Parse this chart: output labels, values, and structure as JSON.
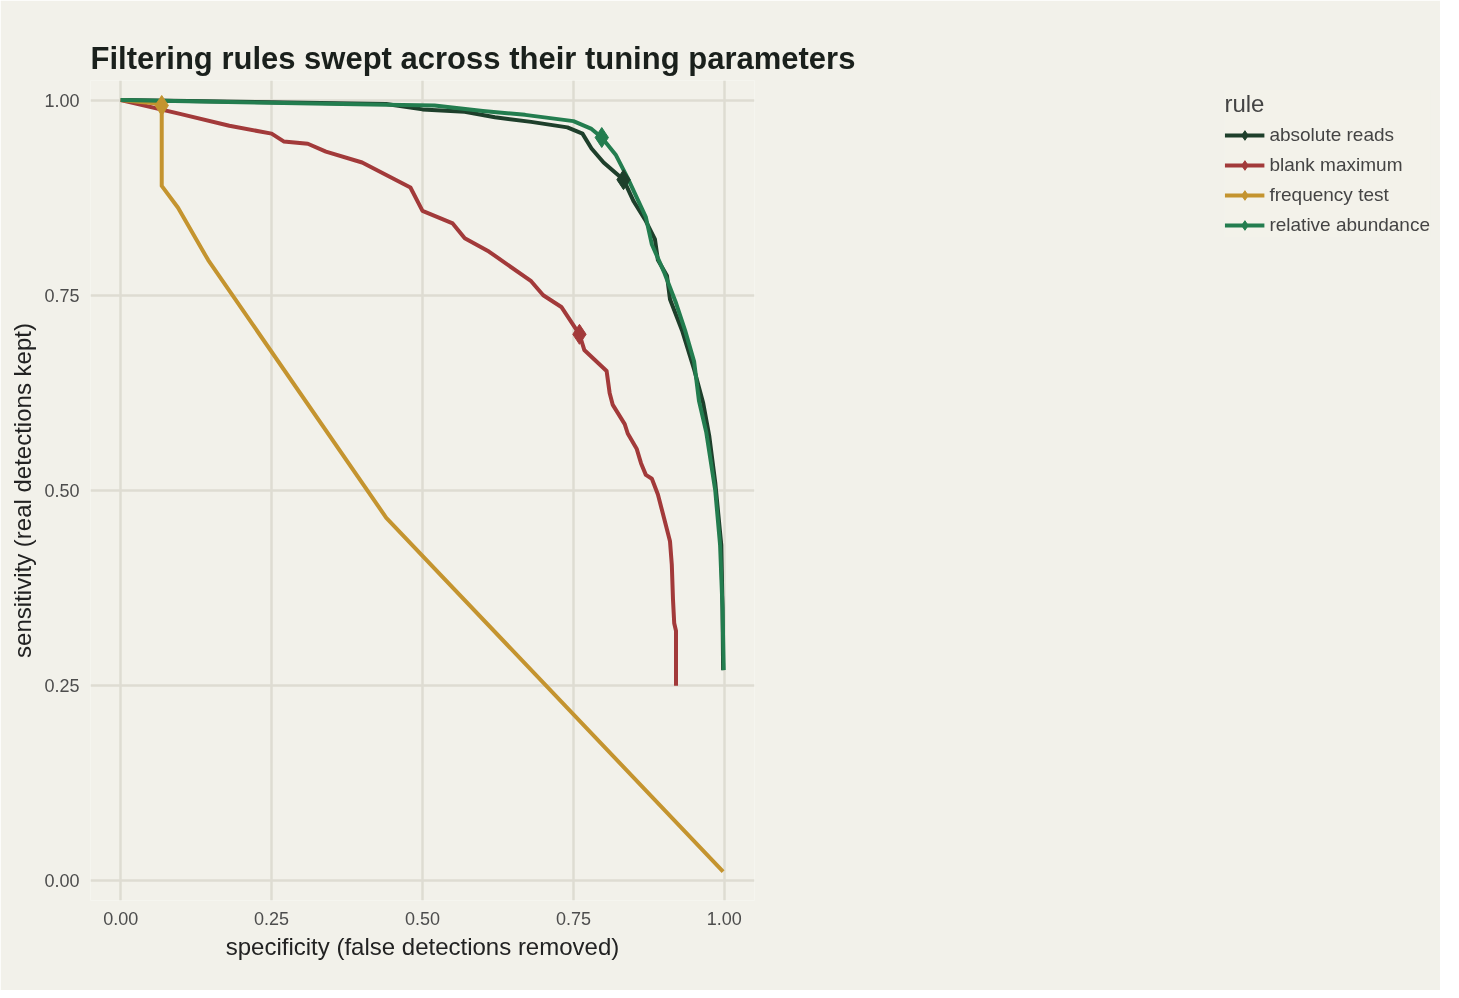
{
  "chart_data": {
    "type": "line",
    "title": "Filtering rules swept across their tuning parameters",
    "xlabel": "specificity (false detections removed)",
    "ylabel": "sensitivity (real detections kept)",
    "legend_title": "rule",
    "legend": "right",
    "grid": true,
    "line_style": "solid",
    "marker": "none",
    "xlim": [
      -0.05,
      1.05
    ],
    "ylim": [
      -0.025,
      1.025
    ],
    "xticks": [
      {
        "value": 0,
        "label": "0.00"
      },
      {
        "value": 0.25,
        "label": "0.25"
      },
      {
        "value": 0.5,
        "label": "0.50"
      },
      {
        "value": 0.75,
        "label": "0.75"
      },
      {
        "value": 1,
        "label": "1.00"
      }
    ],
    "yticks": [
      {
        "value": 0,
        "label": "0.00"
      },
      {
        "value": 0.25,
        "label": "0.25"
      },
      {
        "value": 0.5,
        "label": "0.50"
      },
      {
        "value": 0.75,
        "label": "0.75"
      },
      {
        "value": 1,
        "label": "1.00"
      }
    ],
    "series": [
      {
        "name": "absolute reads",
        "color": "#1e3f2b",
        "x": [
          0,
          0.25,
          0.44,
          0.5,
          0.57,
          0.62,
          0.68,
          0.74,
          0.765,
          0.78,
          0.8,
          0.833,
          0.85,
          0.87,
          0.885,
          0.89,
          0.905,
          0.91,
          0.93,
          0.95,
          0.965,
          0.975,
          0.985,
          0.99,
          0.995,
          0.997,
          0.998
        ],
        "values": [
          1,
          0.997,
          0.995,
          0.988,
          0.985,
          0.978,
          0.972,
          0.965,
          0.957,
          0.938,
          0.92,
          0.898,
          0.87,
          0.845,
          0.822,
          0.795,
          0.775,
          0.745,
          0.705,
          0.655,
          0.612,
          0.57,
          0.51,
          0.47,
          0.43,
          0.35,
          0.27
        ]
      },
      {
        "name": "blank maximum",
        "color": "#a23a3a",
        "x": [
          0,
          0.1,
          0.18,
          0.25,
          0.27,
          0.31,
          0.34,
          0.4,
          0.48,
          0.5,
          0.55,
          0.57,
          0.61,
          0.68,
          0.7,
          0.73,
          0.76,
          0.768,
          0.805,
          0.81,
          0.815,
          0.835,
          0.84,
          0.855,
          0.862,
          0.87,
          0.88,
          0.89,
          0.9,
          0.91,
          0.913,
          0.915,
          0.917,
          0.92,
          0.92
        ],
        "values": [
          1,
          0.982,
          0.967,
          0.957,
          0.947,
          0.944,
          0.934,
          0.92,
          0.888,
          0.858,
          0.842,
          0.823,
          0.806,
          0.768,
          0.75,
          0.735,
          0.7,
          0.68,
          0.653,
          0.625,
          0.61,
          0.585,
          0.573,
          0.553,
          0.535,
          0.52,
          0.515,
          0.495,
          0.465,
          0.435,
          0.405,
          0.36,
          0.33,
          0.32,
          0.25
        ]
      },
      {
        "name": "frequency test",
        "color": "#c4942f",
        "x": [
          0,
          0.068,
          0.068,
          0.095,
          0.145,
          0.44,
          0.998
        ],
        "values": [
          1,
          0.995,
          0.89,
          0.862,
          0.795,
          0.465,
          0.012
        ]
      },
      {
        "name": "relative abundance",
        "color": "#237d4f",
        "x": [
          0,
          0.2,
          0.44,
          0.52,
          0.6,
          0.67,
          0.75,
          0.78,
          0.797,
          0.82,
          0.84,
          0.87,
          0.88,
          0.9,
          0.92,
          0.935,
          0.95,
          0.958,
          0.97,
          0.985,
          0.993,
          0.997,
          0.999
        ],
        "values": [
          1,
          0.997,
          0.994,
          0.993,
          0.986,
          0.981,
          0.973,
          0.963,
          0.952,
          0.93,
          0.9,
          0.85,
          0.815,
          0.78,
          0.74,
          0.705,
          0.665,
          0.615,
          0.575,
          0.5,
          0.43,
          0.35,
          0.27
        ]
      },
      {
        "type": "scatter",
        "marker": "diamond",
        "color": "#1e3f2b",
        "x": [
          0.833
        ],
        "values": [
          0.898
        ]
      },
      {
        "type": "scatter",
        "marker": "diamond",
        "color": "#a23a3a",
        "x": [
          0.76
        ],
        "values": [
          0.7
        ]
      },
      {
        "type": "scatter",
        "marker": "diamond",
        "color": "#c4942f",
        "x": [
          0.068
        ],
        "values": [
          0.993
        ]
      },
      {
        "type": "scatter",
        "marker": "diamond",
        "color": "#237d4f",
        "x": [
          0.797
        ],
        "values": [
          0.952
        ]
      }
    ]
  }
}
